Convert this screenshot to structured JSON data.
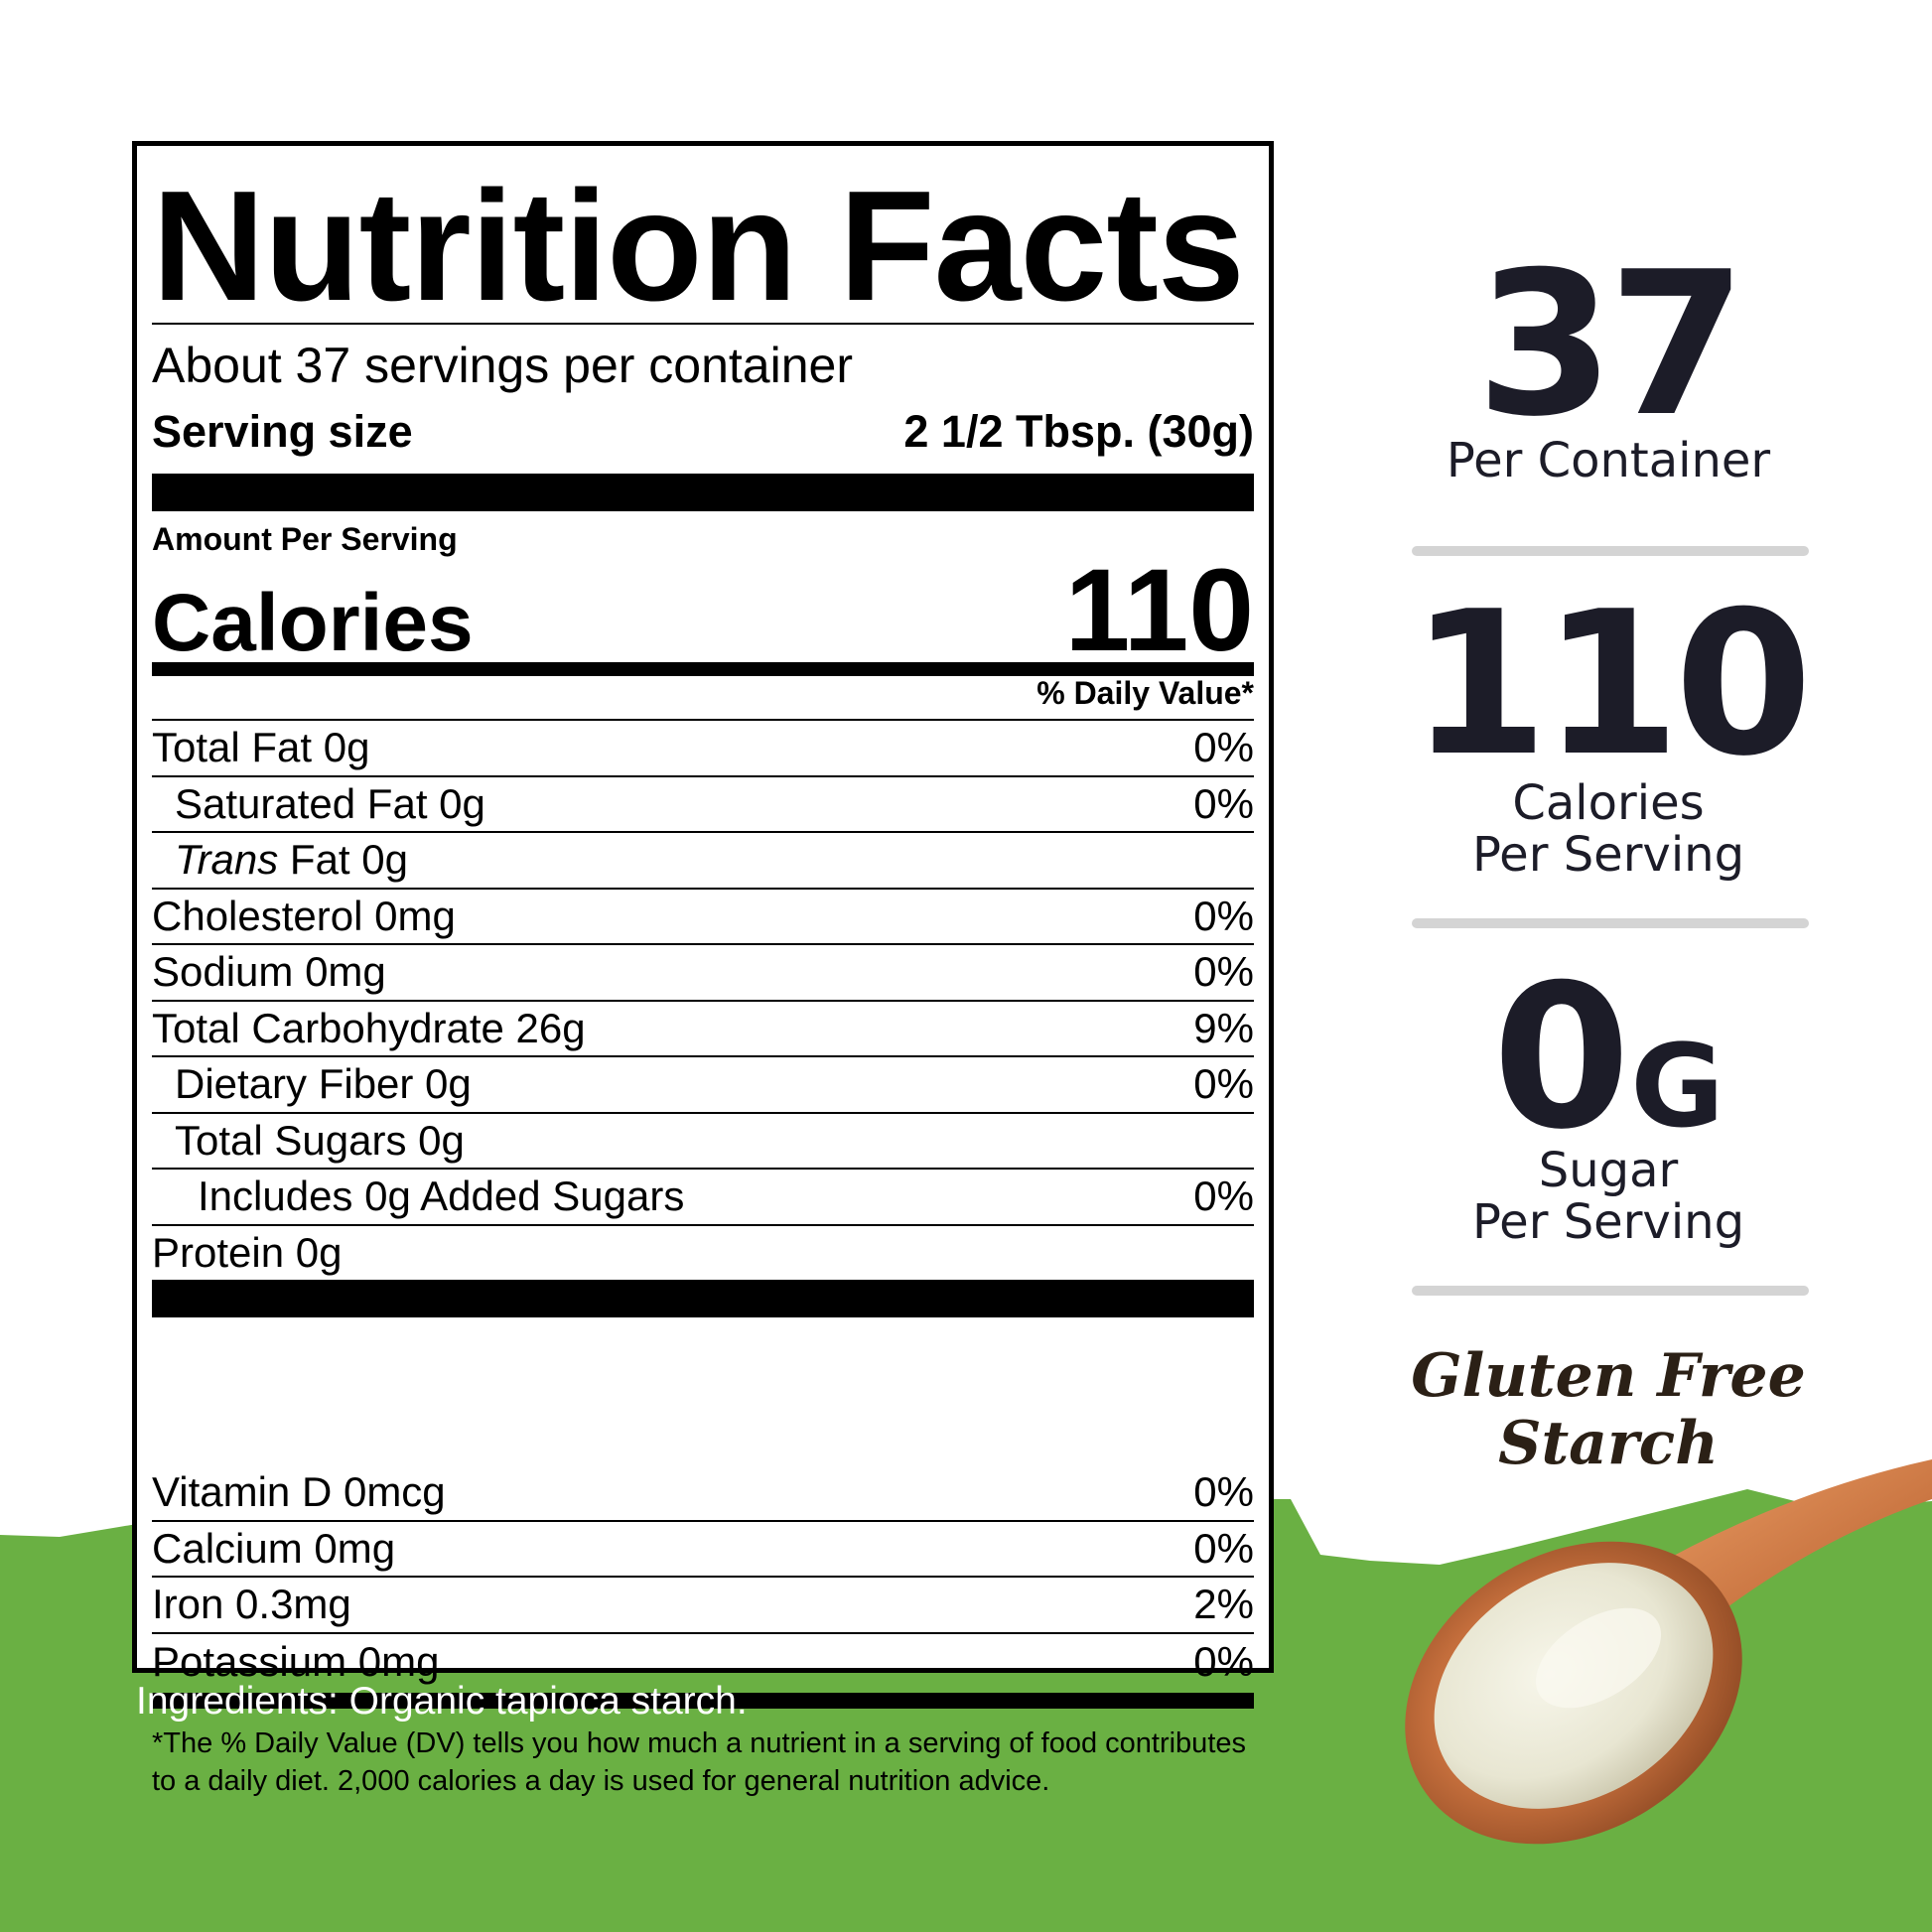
{
  "colors": {
    "green": "#6ab043",
    "stat_text": "#1c1c28",
    "divider": "#d4d4d4"
  },
  "label": {
    "title": "Nutrition Facts",
    "servings_per_container": "About 37 servings per container",
    "serving_size_label": "Serving size",
    "serving_size_value": "2 1/2 Tbsp. (30g)",
    "amount_per_serving": "Amount Per Serving",
    "calories_label": "Calories",
    "calories_value": "110",
    "daily_value_header": "% Daily Value*",
    "nutrients": [
      {
        "name": "Total Fat  0g",
        "dv": "0%"
      },
      {
        "name": "Saturated Fat  0g",
        "dv": "0%"
      },
      {
        "name_italic": "Trans",
        "name_rest": " Fat  0g",
        "dv": ""
      },
      {
        "name": "Cholesterol  0mg",
        "dv": "0%"
      },
      {
        "name": "Sodium  0mg",
        "dv": "0%"
      },
      {
        "name": "Total Carbohydrate 26g",
        "dv": "9%"
      },
      {
        "name": "Dietary Fiber  0g",
        "dv": "0%"
      },
      {
        "name": "Total Sugars  0g",
        "dv": ""
      },
      {
        "name": "Includes 0g Added Sugars",
        "dv": "0%"
      },
      {
        "name": "Protein 0g",
        "dv": ""
      }
    ],
    "vitamins": [
      {
        "name": "Vitamin D  0mcg",
        "dv": "0%"
      },
      {
        "name": "Calcium  0mg",
        "dv": "0%"
      },
      {
        "name": "Iron  0.3mg",
        "dv": "2%"
      },
      {
        "name": "Potassium 0mg",
        "dv": "0%"
      }
    ],
    "footnote": "*The % Daily Value (DV) tells you how much a nutrient in a serving of food contributes to a daily diet. 2,000 calories a day is used for general nutrition advice."
  },
  "ingredients": "Ingredients: Organic tapioca starch.",
  "stats": {
    "servings_value": "37",
    "servings_caption": "Per Container",
    "calories_value": "110",
    "calories_caption_1": "Calories",
    "calories_caption_2": "Per Serving",
    "sugar_value": "0",
    "sugar_unit": "G",
    "sugar_caption_1": "Sugar",
    "sugar_caption_2": "Per Serving",
    "badge_line_1": "Gluten Free",
    "badge_line_2": "Starch"
  }
}
